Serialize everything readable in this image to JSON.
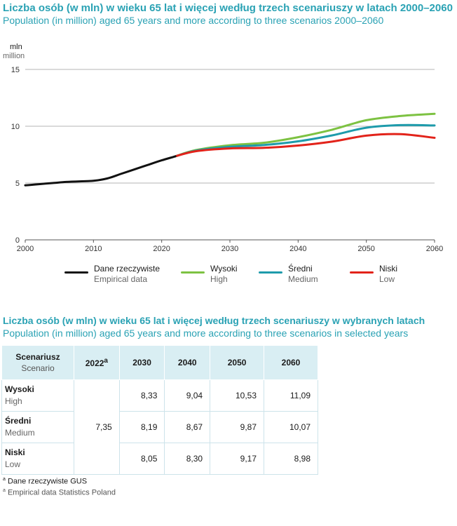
{
  "header": {
    "title_pl": "Liczba osób (w mln) w wieku 65 lat i więcej według trzech scenariuszy w latach 2000–2060",
    "title_en": "Population (in million) aged 65 years and more according to three scenarios 2000–2060"
  },
  "chart_data": {
    "type": "line",
    "ylabel_pl": "mln",
    "ylabel_en": "million",
    "xlim": [
      2000,
      2060
    ],
    "ylim": [
      0,
      15
    ],
    "x_ticks": [
      2000,
      2010,
      2020,
      2030,
      2040,
      2050,
      2060
    ],
    "y_ticks": [
      0,
      5,
      10,
      15
    ],
    "grid": "horizontal",
    "legend_position": "bottom",
    "series": [
      {
        "name_pl": "Dane rzeczywiste",
        "name_en": "Empirical data",
        "color": "#111111",
        "points": [
          [
            2000,
            4.8
          ],
          [
            2002,
            4.9
          ],
          [
            2004,
            5.0
          ],
          [
            2006,
            5.1
          ],
          [
            2008,
            5.15
          ],
          [
            2010,
            5.2
          ],
          [
            2012,
            5.4
          ],
          [
            2014,
            5.8
          ],
          [
            2016,
            6.2
          ],
          [
            2018,
            6.6
          ],
          [
            2020,
            7.0
          ],
          [
            2022,
            7.35
          ]
        ]
      },
      {
        "name_pl": "Wysoki",
        "name_en": "High",
        "color": "#7dc242",
        "points": [
          [
            2022,
            7.35
          ],
          [
            2025,
            7.9
          ],
          [
            2030,
            8.33
          ],
          [
            2035,
            8.55
          ],
          [
            2040,
            9.04
          ],
          [
            2045,
            9.7
          ],
          [
            2050,
            10.53
          ],
          [
            2055,
            10.9
          ],
          [
            2060,
            11.09
          ]
        ]
      },
      {
        "name_pl": "Średni",
        "name_en": "Medium",
        "color": "#1e9bab",
        "points": [
          [
            2022,
            7.35
          ],
          [
            2025,
            7.85
          ],
          [
            2030,
            8.19
          ],
          [
            2035,
            8.35
          ],
          [
            2040,
            8.67
          ],
          [
            2045,
            9.2
          ],
          [
            2050,
            9.87
          ],
          [
            2055,
            10.1
          ],
          [
            2060,
            10.07
          ]
        ]
      },
      {
        "name_pl": "Niski",
        "name_en": "Low",
        "color": "#e2231a",
        "points": [
          [
            2022,
            7.35
          ],
          [
            2025,
            7.8
          ],
          [
            2030,
            8.05
          ],
          [
            2035,
            8.1
          ],
          [
            2040,
            8.3
          ],
          [
            2045,
            8.65
          ],
          [
            2050,
            9.17
          ],
          [
            2055,
            9.3
          ],
          [
            2060,
            8.98
          ]
        ]
      }
    ]
  },
  "table": {
    "title_pl": "Liczba osób (w mln) w wieku 65 lat i więcej według trzech scenariuszy w wybranych latach",
    "title_en": "Population (in million) aged 65 years and more according to three scenarios in selected years",
    "header_pl": "Scenariusz",
    "header_en": "Scenario",
    "col_2022": "2022",
    "col_2022_sup": "a",
    "col_2030": "2030",
    "col_2040": "2040",
    "col_2050": "2050",
    "col_2060": "2060",
    "base_value": "7,35",
    "rows": [
      {
        "label_pl": "Wysoki",
        "label_en": "High",
        "v2030": "8,33",
        "v2040": "9,04",
        "v2050": "10,53",
        "v2060": "11,09"
      },
      {
        "label_pl": "Średni",
        "label_en": "Medium",
        "v2030": "8,19",
        "v2040": "8,67",
        "v2050": "9,87",
        "v2060": "10,07"
      },
      {
        "label_pl": "Niski",
        "label_en": "Low",
        "v2030": "8,05",
        "v2040": "8,30",
        "v2050": "9,17",
        "v2060": "8,98"
      }
    ]
  },
  "footnotes": {
    "marker": "a",
    "line_pl": "Dane rzeczywiste GUS",
    "line_en": "Empirical data Statistics Poland"
  }
}
